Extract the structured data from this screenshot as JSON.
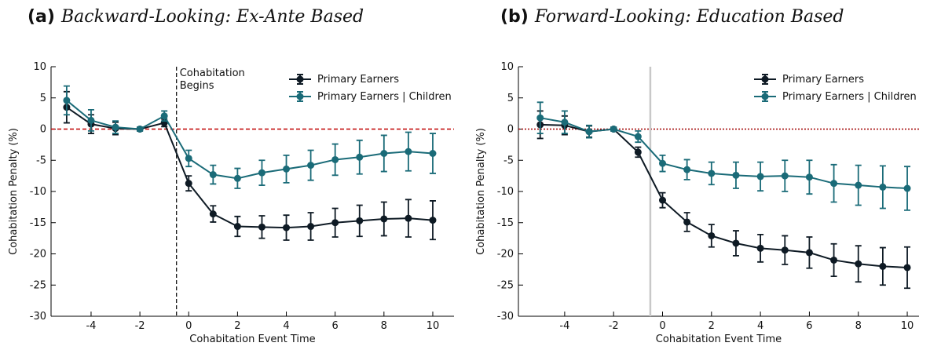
{
  "chart_data": [
    {
      "type": "line",
      "title_label": "(a)",
      "title": "Backward-Looking: Ex-Ante Based",
      "xlabel": "Cohabitation Event Time",
      "ylabel": "Cohabitation Penalty (%)",
      "x": [
        -5,
        -4,
        -3,
        -2,
        -1,
        0,
        1,
        2,
        3,
        4,
        5,
        6,
        7,
        8,
        9,
        10
      ],
      "xlim": [
        -5.64,
        10.87
      ],
      "xticks": [
        -4,
        -2,
        0,
        2,
        4,
        6,
        8,
        10
      ],
      "ylim": [
        -30,
        10
      ],
      "yticks": [
        -30,
        -25,
        -20,
        -15,
        -10,
        -5,
        0,
        5,
        10
      ],
      "vline": -0.5,
      "vline_style": "dashed",
      "vline_color": "#000000",
      "hline": 0,
      "hline_style": "dashed",
      "hline_color": "#c00000",
      "annotation": [
        "Cohabitation",
        "Begins"
      ],
      "series": [
        {
          "name": "Primary Earners",
          "color": "#0e1a24",
          "values": [
            3.5,
            0.8,
            0.1,
            0,
            1.0,
            -8.7,
            -13.6,
            -15.6,
            -15.7,
            -15.8,
            -15.6,
            -15.0,
            -14.7,
            -14.4,
            -14.3,
            -14.6
          ],
          "errors": [
            2.5,
            1.5,
            1.0,
            0.3,
            0.6,
            1.2,
            1.3,
            1.6,
            1.8,
            2.0,
            2.2,
            2.3,
            2.5,
            2.7,
            3.0,
            3.1
          ]
        },
        {
          "name": "Primary Earners | Children",
          "color": "#1a6b78",
          "values": [
            4.6,
            1.4,
            0.3,
            0,
            2.1,
            -4.7,
            -7.3,
            -7.9,
            -7.0,
            -6.4,
            -5.8,
            -4.9,
            -4.5,
            -3.9,
            -3.6,
            -3.9
          ],
          "errors": [
            2.3,
            1.7,
            1.0,
            0.3,
            0.8,
            1.3,
            1.5,
            1.6,
            2.0,
            2.2,
            2.4,
            2.5,
            2.7,
            2.9,
            3.1,
            3.2
          ]
        }
      ]
    },
    {
      "type": "line",
      "title_label": "(b)",
      "title": "Forward-Looking: Education Based",
      "xlabel": "Cohabitation Event Time",
      "ylabel": "Cohabitation Penalty (%)",
      "x": [
        -5,
        -4,
        -3,
        -2,
        -1,
        0,
        1,
        2,
        3,
        4,
        5,
        6,
        7,
        8,
        9,
        10
      ],
      "xlim": [
        -5.89,
        10.48
      ],
      "xticks": [
        -4,
        -2,
        0,
        2,
        4,
        6,
        8,
        10
      ],
      "ylim": [
        -30,
        10
      ],
      "yticks": [
        -30,
        -25,
        -20,
        -15,
        -10,
        -5,
        0,
        5,
        10
      ],
      "vline": -0.5,
      "vline_style": "solid",
      "vline_color": "#c8c8c8",
      "hline": 0,
      "hline_style": "dotted",
      "hline_color": "#a00000",
      "series": [
        {
          "name": "Primary Earners",
          "color": "#0e1a24",
          "values": [
            0.7,
            0.6,
            -0.4,
            0,
            -3.7,
            -11.4,
            -14.9,
            -17.1,
            -18.3,
            -19.1,
            -19.4,
            -19.8,
            -21.0,
            -21.6,
            -22.0,
            -22.2
          ],
          "errors": [
            2.2,
            1.5,
            0.9,
            0.3,
            0.8,
            1.2,
            1.5,
            1.8,
            2.0,
            2.2,
            2.3,
            2.5,
            2.6,
            2.9,
            3.0,
            3.3
          ]
        },
        {
          "name": "Primary Earners | Children",
          "color": "#1a6b78",
          "values": [
            1.8,
            1.1,
            -0.4,
            0,
            -1.2,
            -5.5,
            -6.5,
            -7.1,
            -7.4,
            -7.6,
            -7.5,
            -7.7,
            -8.7,
            -9.0,
            -9.3,
            -9.5
          ],
          "errors": [
            2.5,
            1.8,
            1.0,
            0.3,
            0.9,
            1.3,
            1.6,
            1.8,
            2.1,
            2.3,
            2.5,
            2.7,
            3.0,
            3.2,
            3.4,
            3.5
          ]
        }
      ]
    }
  ]
}
